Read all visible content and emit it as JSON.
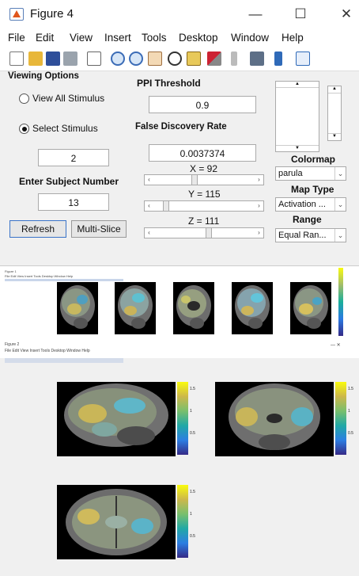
{
  "figure4": {
    "title": "Figure 4",
    "window_controls": [
      "—",
      "☐",
      "✕"
    ],
    "menu": [
      "File",
      "Edit",
      "View",
      "Insert",
      "Tools",
      "Desktop",
      "Window",
      "Help"
    ],
    "toolbar_icons": [
      "new-file-icon",
      "open-folder-icon",
      "save-icon",
      "print-icon",
      "pointer-icon",
      "zoom-in-icon",
      "zoom-out-icon",
      "pan-icon",
      "rotate-icon",
      "datatip-icon",
      "brush-icon",
      "link-icon",
      "colorbar-icon",
      "legend-icon"
    ],
    "viewing_options": "Viewing Options",
    "radio_all": "View All Stimulus",
    "radio_select": "Select Stimulus",
    "stimulus_value": "2",
    "subject_label": "Enter Subject Number",
    "subject_value": "13",
    "refresh_button": "Refresh",
    "multislice_button": "Multi-Slice",
    "ppi_label": "PPI Threshold",
    "ppi_value": "0.9",
    "fdr_label": "False Discovery Rate",
    "fdr_value": "0.0037374",
    "x_label": "X = 92",
    "y_label": "Y = 115",
    "z_label": "Z = 111",
    "x_level": 0.4,
    "y_level": 0.1,
    "z_level": 0.55,
    "colormap_label": "Colormap",
    "colormap_value": "parula",
    "maptype_label": "Map Type",
    "maptype_value": "Activation ...",
    "range_label": "Range",
    "range_value": "Equal Ran..."
  },
  "figure_mid": {
    "title_tiny": "Figure 1",
    "menu_tiny": "File  Edit  View  Insert  Tools  Desktop  Window  Help"
  },
  "figure_bottom": {
    "title": "Figure 2",
    "menu": "File  Edit  View  Insert  Tools  Desktop  Window  Help",
    "close": "—      ✕",
    "colorbar_ticks": [
      "1.5",
      "1",
      "0.5"
    ]
  },
  "colors": {
    "parula_top": "#f9fb0e",
    "parula_bottom": "#352a87"
  }
}
